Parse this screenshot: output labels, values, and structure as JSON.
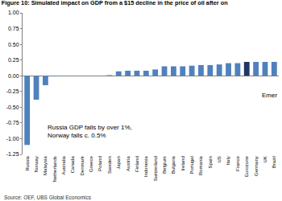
{
  "chart_data": {
    "type": "bar",
    "title": "Figure 10: Simulated impact on GDP from a $15 decline in the price of oil after on",
    "categories": [
      "Russia",
      "Norway",
      "Malaysia",
      "Netherlands",
      "Australia",
      "Canada",
      "Denmark",
      "Greece",
      "Poland",
      "Sweden",
      "Japan",
      "Austria",
      "Finland",
      "Indonesia",
      "Switzerland",
      "Belgium",
      "Bulgaria",
      "Ireland",
      "Portugal",
      "Romania",
      "Spain",
      "US",
      "Italy",
      "France",
      "Eurozone",
      "Germany",
      "UK",
      "Brazil"
    ],
    "values": [
      -1.1,
      -0.38,
      -0.15,
      -0.01,
      0,
      0,
      0,
      0,
      0,
      0.01,
      0.07,
      0.08,
      0.08,
      0.08,
      0.1,
      0.15,
      0.15,
      0.15,
      0.16,
      0.17,
      0.17,
      0.18,
      0.2,
      0.2,
      0.22,
      0.22,
      0.22,
      0.22
    ],
    "colors": [
      "#4f81bd",
      "#4f81bd",
      "#4f81bd",
      "#4f81bd",
      "#4f81bd",
      "#4f81bd",
      "#4f81bd",
      "#4f81bd",
      "#4f81bd",
      "#4f81bd",
      "#4f81bd",
      "#4f81bd",
      "#4f81bd",
      "#4f81bd",
      "#4f81bd",
      "#4f81bd",
      "#4f81bd",
      "#4f81bd",
      "#4f81bd",
      "#4f81bd",
      "#4f81bd",
      "#4f81bd",
      "#4f81bd",
      "#4f81bd",
      "#1f3864",
      "#4f81bd",
      "#4f81bd",
      "#4f81bd"
    ],
    "ylim": [
      -1.25,
      1.0
    ],
    "yticks": [
      {
        "value": 1.0,
        "label": "1.00"
      },
      {
        "value": 0.75,
        "label": "0.75"
      },
      {
        "value": 0.5,
        "label": "0.50"
      },
      {
        "value": 0.25,
        "label": "0.25"
      },
      {
        "value": 0,
        "label": "0.00"
      },
      {
        "value": -0.25,
        "label": "-0.25"
      },
      {
        "value": -0.5,
        "label": "-0.50"
      },
      {
        "value": -0.75,
        "label": "-0.75"
      },
      {
        "value": -1.0,
        "label": "-1.00"
      },
      {
        "value": -1.25,
        "label": "-1.25"
      }
    ],
    "grid": false,
    "annotations": [
      [
        "Russia GDP falls by over 1%,",
        "Norway falls c. 0.5%"
      ],
      [
        "Emer"
      ]
    ],
    "note": "Source: OEF, UBS Global Economics"
  }
}
